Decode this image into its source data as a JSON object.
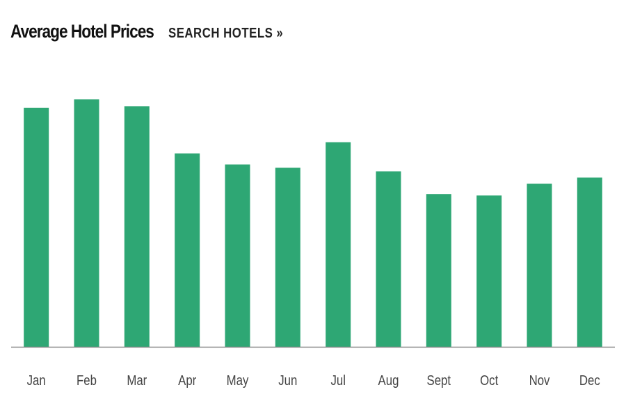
{
  "header": {
    "title": "Average Hotel Prices",
    "search_label": "SEARCH HOTELS",
    "search_chevron": "»"
  },
  "chart_data": {
    "type": "bar",
    "title": "Average Hotel Prices",
    "xlabel": "",
    "ylabel": "",
    "categories": [
      "Jan",
      "Feb",
      "Mar",
      "Apr",
      "May",
      "Jun",
      "Jul",
      "Aug",
      "Sept",
      "Oct",
      "Nov",
      "Dec"
    ],
    "values": [
      100,
      103.5,
      100.6,
      80.9,
      76.3,
      74.9,
      85.6,
      73.4,
      63.9,
      63.3,
      68.2,
      70.8
    ],
    "ylim": [
      0,
      104.6
    ],
    "grid": false,
    "legend": "none",
    "bar_color": "#2ea774",
    "axis_color": "#888888"
  }
}
